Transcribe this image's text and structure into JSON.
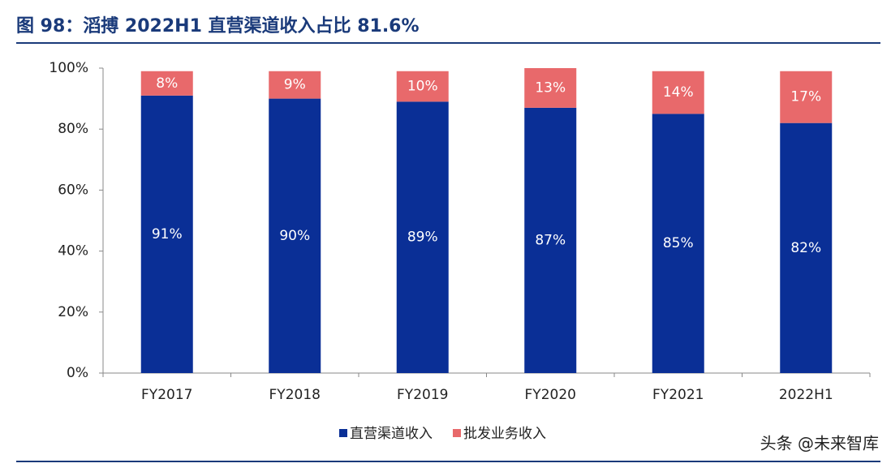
{
  "chart_data": {
    "type": "stacked_bar",
    "title": "图 98：滔搏 2022H1 直营渠道收入占比 81.6%",
    "categories": [
      "FY2017",
      "FY2018",
      "FY2019",
      "FY2020",
      "FY2021",
      "2022H1"
    ],
    "series": [
      {
        "name": "直营渠道收入",
        "color": "#0a2f96",
        "values": [
          91,
          90,
          89,
          87,
          85,
          82
        ],
        "value_labels": [
          "91%",
          "90%",
          "89%",
          "87%",
          "85%",
          "82%"
        ]
      },
      {
        "name": "批发业务收入",
        "color": "#e8696b",
        "values": [
          8,
          9,
          10,
          13,
          14,
          17
        ],
        "value_labels": [
          "8%",
          "9%",
          "10%",
          "13%",
          "14%",
          "17%"
        ]
      }
    ],
    "ylim": [
      0,
      100
    ],
    "yticks": [
      {
        "value": 0,
        "label": "0%"
      },
      {
        "value": 20,
        "label": "20%"
      },
      {
        "value": 40,
        "label": "40%"
      },
      {
        "value": 60,
        "label": "60%"
      },
      {
        "value": 80,
        "label": "80%"
      },
      {
        "value": 100,
        "label": "100%"
      }
    ],
    "legend": "bottom",
    "watermark": "头条 @未来智库"
  }
}
